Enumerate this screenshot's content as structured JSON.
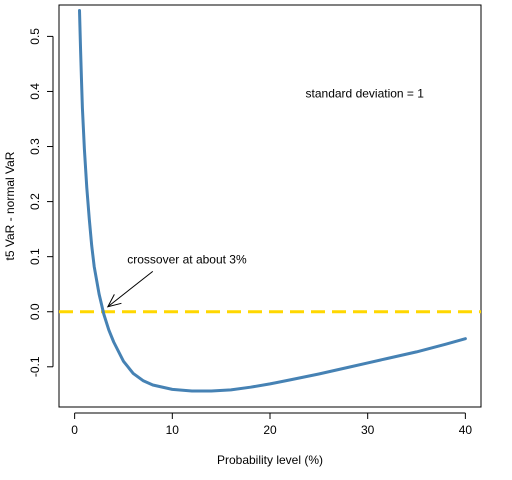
{
  "chart_data": {
    "type": "line",
    "xlabel": "Probability level (%)",
    "ylabel": "t5 VaR - normal VaR",
    "xlim": [
      -1.6,
      41.6
    ],
    "ylim": [
      -0.173,
      0.557
    ],
    "x_ticks": [
      0,
      10,
      20,
      30,
      40
    ],
    "y_ticks": [
      -0.1,
      0.0,
      0.1,
      0.2,
      0.3,
      0.4,
      0.5
    ],
    "x_tick_labels": [
      "0",
      "10",
      "20",
      "30",
      "40"
    ],
    "y_tick_labels": [
      "-0.1",
      "0.0",
      "0.1",
      "0.2",
      "0.3",
      "0.4",
      "0.5"
    ],
    "grid": false,
    "series": [
      {
        "color": "#4682B4",
        "x": [
          0.5,
          0.6,
          0.7,
          0.8,
          1.0,
          1.25,
          1.5,
          1.75,
          2.0,
          2.5,
          3.0,
          3.5,
          4.0,
          5.0,
          6.0,
          7.0,
          8.0,
          10.0,
          12.0,
          14.0,
          16.0,
          18.0,
          20.0,
          22.0,
          25.0,
          28.0,
          30.0,
          32.0,
          35.0,
          38.0,
          40.0
        ],
        "y": [
          0.547,
          0.48,
          0.42,
          0.37,
          0.295,
          0.225,
          0.168,
          0.12,
          0.082,
          0.032,
          -0.005,
          -0.033,
          -0.055,
          -0.09,
          -0.112,
          -0.125,
          -0.133,
          -0.141,
          -0.144,
          -0.144,
          -0.142,
          -0.137,
          -0.131,
          -0.124,
          -0.113,
          -0.101,
          -0.093,
          -0.085,
          -0.073,
          -0.059,
          -0.049
        ]
      }
    ],
    "reference_line": {
      "y": 0.0,
      "color": "#FFD700",
      "style": "dashed"
    },
    "annotations": [
      {
        "text": "standard deviation = 1",
        "x": 29.7,
        "y": 0.396
      },
      {
        "text": "crossover at about 3%",
        "x": 11.5,
        "y": 0.095,
        "arrow_to": {
          "x": 3.4,
          "y": 0.0
        }
      }
    ]
  }
}
